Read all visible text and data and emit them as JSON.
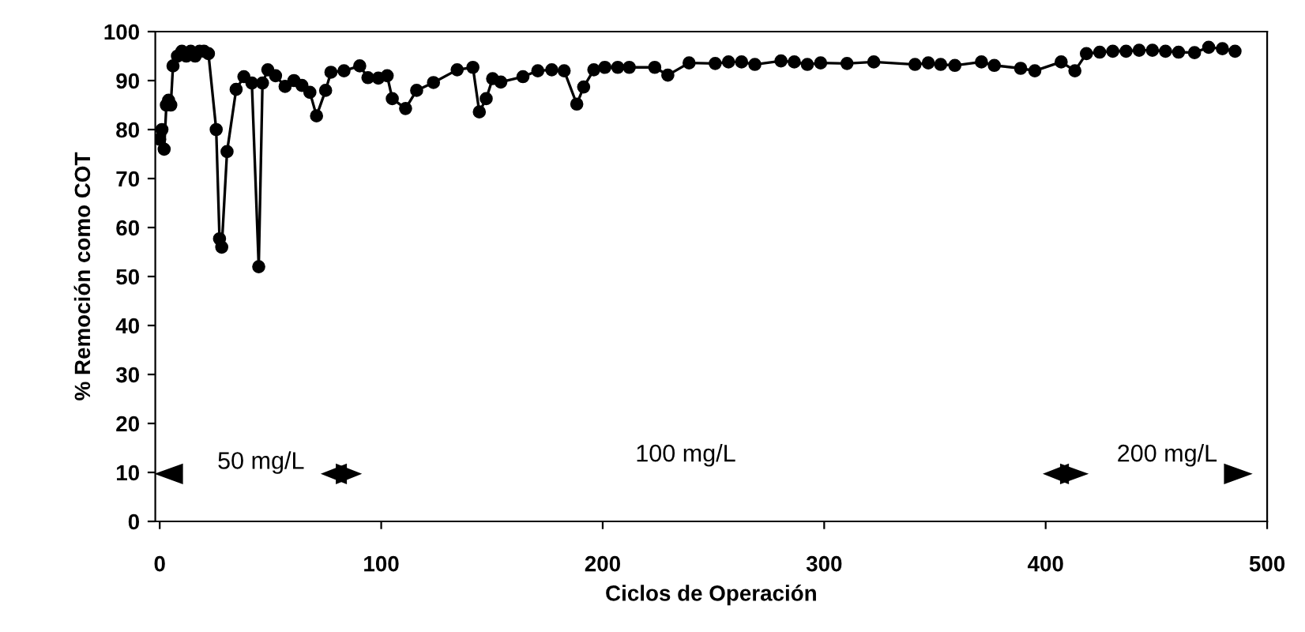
{
  "chart_data": {
    "type": "line",
    "xlabel": "Ciclos de Operación",
    "ylabel": "% Remoción como COT",
    "xlim": [
      -2,
      500
    ],
    "xticks": [
      0,
      100,
      200,
      300,
      400,
      500
    ],
    "ylim": [
      0,
      100
    ],
    "yticks": [
      0,
      10,
      20,
      30,
      40,
      50,
      60,
      70,
      80,
      90,
      100
    ],
    "marker": "circle",
    "line_style": "solid",
    "grid": false,
    "annotations": [
      "50 mg/L",
      "100 mg/L",
      "200 mg/L"
    ],
    "series": [
      {
        "color": "#000000",
        "x": [
          0,
          1,
          2,
          3,
          4,
          5,
          6,
          8,
          10,
          12,
          14,
          16,
          18,
          20,
          22,
          25.5,
          27,
          28,
          30.4,
          34.5,
          38,
          41.6,
          44.7,
          46.4,
          48.8,
          52.3,
          56.6,
          60.6,
          64.2,
          67.8,
          70.8,
          74.9,
          77.3,
          83.2,
          90.3,
          94,
          98.7,
          102.7,
          105,
          111,
          116,
          123.6,
          134.3,
          141.4,
          144.3,
          147.4,
          150.3,
          154,
          164,
          170.7,
          177,
          182.6,
          188.3,
          191.4,
          196,
          201,
          206.8,
          212,
          223.5,
          229.4,
          239,
          250.8,
          256.8,
          262.7,
          268.7,
          280.5,
          286.5,
          292.4,
          298.4,
          310.3,
          322.4,
          341,
          347,
          352.6,
          359,
          371,
          376.8,
          388.7,
          395.1,
          407,
          413.2,
          418.4,
          424.4,
          430.3,
          436.3,
          442.2,
          448.2,
          454.1,
          460,
          467.2,
          473.6,
          479.8,
          485.5
        ],
        "values": [
          78,
          80,
          76,
          85,
          86,
          85,
          93,
          95,
          96,
          95,
          96,
          95,
          96,
          96,
          95.5,
          80,
          57.7,
          56,
          75.5,
          88.2,
          90.8,
          89.5,
          52,
          89.5,
          92.2,
          91,
          88.8,
          90,
          89,
          87.6,
          82.8,
          88,
          91.7,
          92,
          93,
          90.6,
          90.5,
          91,
          86.3,
          84.3,
          88,
          89.6,
          92.2,
          92.7,
          83.6,
          86.3,
          90.4,
          89.7,
          90.8,
          92,
          92.2,
          92,
          85.2,
          88.7,
          92.2,
          92.7,
          92.7,
          92.7,
          92.7,
          91.1,
          93.6,
          93.5,
          93.8,
          93.8,
          93.3,
          94,
          93.8,
          93.3,
          93.6,
          93.5,
          93.8,
          93.3,
          93.6,
          93.3,
          93.1,
          93.8,
          93.1,
          92.5,
          92,
          93.8,
          92,
          95.5,
          95.8,
          96,
          96,
          96.2,
          96.2,
          96,
          95.8,
          95.7,
          96.8,
          96.5,
          96
        ]
      }
    ]
  }
}
